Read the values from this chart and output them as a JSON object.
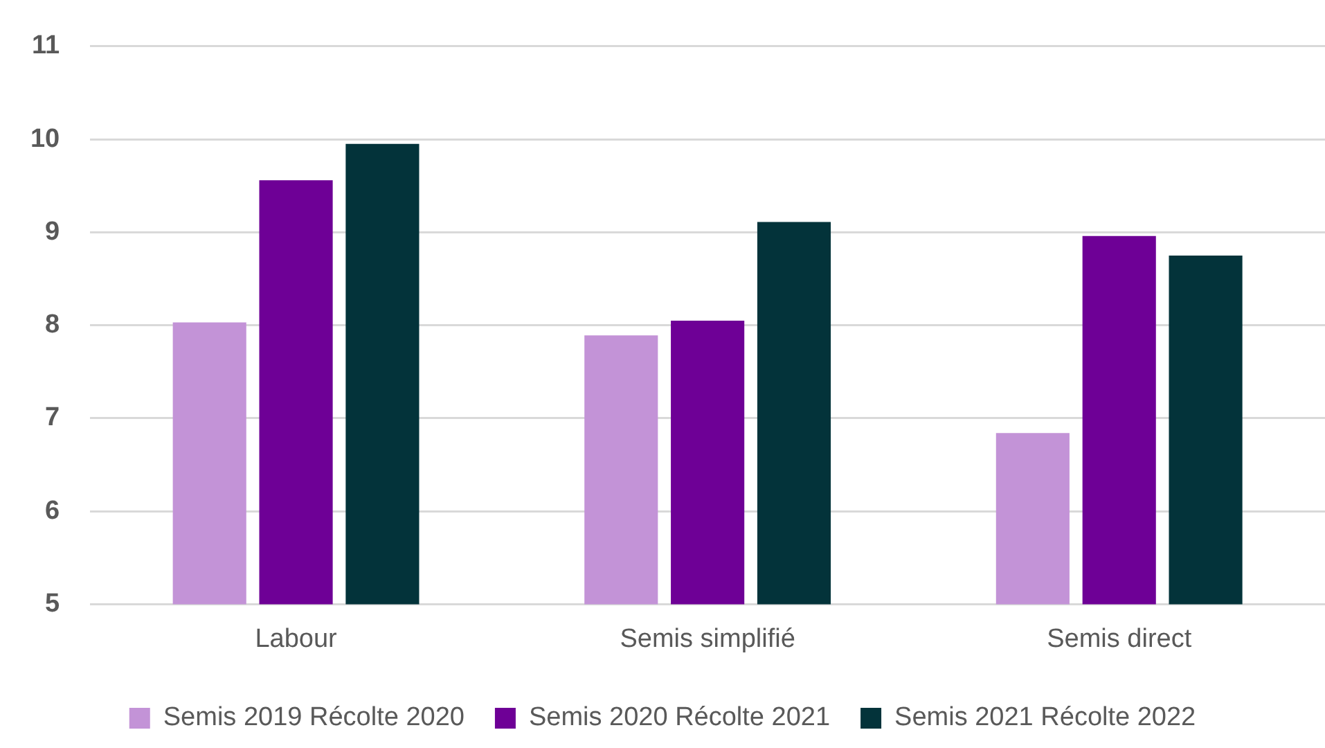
{
  "chart_data": {
    "type": "bar",
    "categories": [
      "Labour",
      "Semis simplifié",
      "Semis direct"
    ],
    "series": [
      {
        "name": "Semis 2019 Récolte 2020",
        "color": "#c393d7",
        "values": [
          8.03,
          7.89,
          6.84
        ]
      },
      {
        "name": "Semis 2020 Récolte 2021",
        "color": "#6e0096",
        "values": [
          9.56,
          8.05,
          8.96
        ]
      },
      {
        "name": "Semis 2021 Récolte 2022",
        "color": "#03333a",
        "values": [
          9.95,
          9.11,
          8.75
        ]
      }
    ],
    "ylim": [
      5,
      11
    ],
    "yticks": [
      5,
      6,
      7,
      8,
      9,
      10,
      11
    ],
    "grid": "y",
    "legend": "bottom"
  }
}
